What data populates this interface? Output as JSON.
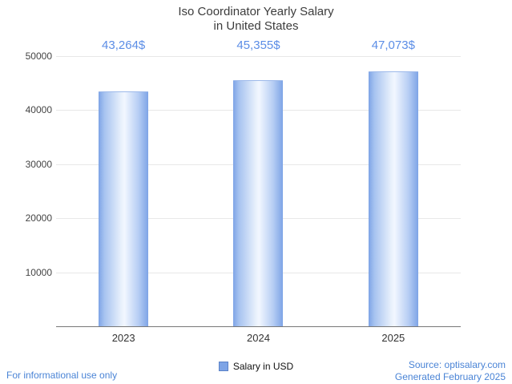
{
  "chart_data": {
    "type": "bar",
    "title_line1": "Iso Coordinator Yearly Salary",
    "title_line2": "in United States",
    "categories": [
      "2023",
      "2024",
      "2025"
    ],
    "values": [
      43264,
      45355,
      47073
    ],
    "display_values": [
      "43,264$",
      "45,355$",
      "47,073$"
    ],
    "series_name": "Salary in USD",
    "ylim": [
      0,
      50000
    ],
    "yticks": [
      "50000",
      "40000",
      "30000",
      "20000",
      "10000"
    ],
    "grid": "horizontal",
    "legend_position": "bottom-center",
    "bar_color": "#7ea4e6",
    "label_color": "#5b8de6"
  },
  "legend": {
    "salary_label": "Salary in USD"
  },
  "footer": {
    "left_note": "For informational use only",
    "source": "Source: optisalary.com",
    "generated": "Generated February 2025"
  }
}
